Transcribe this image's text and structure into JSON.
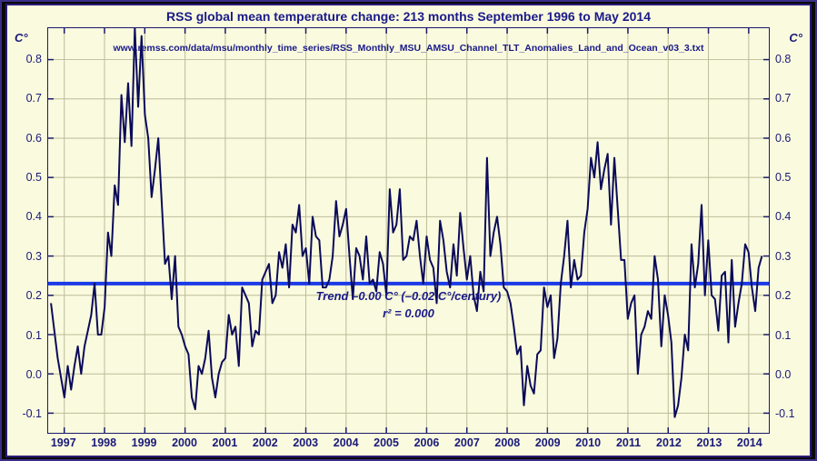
{
  "chart": {
    "type": "line",
    "title": "RSS global mean temperature change: 213 months September 1996 to May 2014",
    "url_text": "www.remss.com/data/msu/monthly_time_series/RSS_Monthly_MSU_AMSU_Channel_TLT_Anomalies_Land_and_Ocean_v03_3.txt",
    "trend_label": "Trend –0.00 C° (–0.02 C°/century)",
    "r2_label": "r² = 0.000",
    "y_axis_label": "C°",
    "title_fontsize": 14,
    "label_fontsize": 13,
    "tick_fontsize": 12.5,
    "background_color": "#fafade",
    "border_color": "#1a1a6a",
    "grid_color": "#bcbc9a",
    "line_color": "#0a0a5a",
    "line_width": 2,
    "trend_line_color": "#1a3ae8",
    "trend_line_width": 4,
    "trend_y": 0.23,
    "text_color": "#1a1a8a",
    "outer_border_color": "#3a2e8a",
    "xlim": [
      1996.6,
      2014.5
    ],
    "ylim": [
      -0.15,
      0.88
    ],
    "yticks": [
      -0.1,
      0.0,
      0.1,
      0.2,
      0.3,
      0.4,
      0.5,
      0.6,
      0.7,
      0.8
    ],
    "ytick_labels": [
      "-0.1",
      "0.0",
      "0.1",
      "0.2",
      "0.3",
      "0.4",
      "0.5",
      "0.6",
      "0.7",
      "0.8"
    ],
    "xticks": [
      1997,
      1998,
      1999,
      2000,
      2001,
      2002,
      2003,
      2004,
      2005,
      2006,
      2007,
      2008,
      2009,
      2010,
      2011,
      2012,
      2013,
      2014
    ],
    "xtick_labels": [
      "1997",
      "1998",
      "1999",
      "2000",
      "2001",
      "2002",
      "2003",
      "2004",
      "2005",
      "2006",
      "2007",
      "2008",
      "2009",
      "2010",
      "2011",
      "2012",
      "2013",
      "2014"
    ],
    "series": {
      "x_start": 1996.67,
      "x_step": 0.0833,
      "y": [
        0.18,
        0.11,
        0.04,
        -0.01,
        -0.06,
        0.02,
        -0.04,
        0.02,
        0.07,
        0.0,
        0.07,
        0.11,
        0.15,
        0.23,
        0.1,
        0.1,
        0.17,
        0.36,
        0.3,
        0.48,
        0.43,
        0.71,
        0.59,
        0.74,
        0.58,
        0.88,
        0.68,
        0.86,
        0.66,
        0.6,
        0.45,
        0.52,
        0.6,
        0.44,
        0.28,
        0.3,
        0.19,
        0.3,
        0.12,
        0.1,
        0.07,
        0.05,
        -0.06,
        -0.09,
        0.02,
        0.0,
        0.04,
        0.11,
        -0.01,
        -0.06,
        0.0,
        0.03,
        0.04,
        0.15,
        0.1,
        0.12,
        0.02,
        0.22,
        0.2,
        0.18,
        0.07,
        0.11,
        0.1,
        0.24,
        0.26,
        0.28,
        0.18,
        0.2,
        0.31,
        0.27,
        0.33,
        0.22,
        0.38,
        0.36,
        0.43,
        0.3,
        0.32,
        0.23,
        0.4,
        0.35,
        0.34,
        0.22,
        0.22,
        0.24,
        0.3,
        0.44,
        0.35,
        0.38,
        0.42,
        0.3,
        0.19,
        0.32,
        0.3,
        0.24,
        0.35,
        0.23,
        0.24,
        0.21,
        0.31,
        0.28,
        0.2,
        0.47,
        0.36,
        0.38,
        0.47,
        0.29,
        0.3,
        0.35,
        0.34,
        0.39,
        0.3,
        0.23,
        0.35,
        0.29,
        0.27,
        0.18,
        0.39,
        0.34,
        0.26,
        0.22,
        0.33,
        0.25,
        0.41,
        0.32,
        0.24,
        0.3,
        0.2,
        0.16,
        0.26,
        0.21,
        0.55,
        0.3,
        0.36,
        0.4,
        0.33,
        0.22,
        0.21,
        0.18,
        0.12,
        0.05,
        0.07,
        -0.08,
        0.02,
        -0.03,
        -0.05,
        0.05,
        0.06,
        0.22,
        0.17,
        0.2,
        0.04,
        0.09,
        0.23,
        0.3,
        0.39,
        0.22,
        0.29,
        0.24,
        0.25,
        0.36,
        0.42,
        0.55,
        0.5,
        0.59,
        0.47,
        0.52,
        0.56,
        0.38,
        0.55,
        0.42,
        0.29,
        0.29,
        0.14,
        0.18,
        0.2,
        0.0,
        0.1,
        0.12,
        0.16,
        0.14,
        0.3,
        0.24,
        0.07,
        0.2,
        0.15,
        0.08,
        -0.11,
        -0.08,
        -0.01,
        0.1,
        0.06,
        0.33,
        0.22,
        0.28,
        0.43,
        0.2,
        0.34,
        0.2,
        0.19,
        0.11,
        0.25,
        0.26,
        0.08,
        0.29,
        0.12,
        0.18,
        0.23,
        0.33,
        0.31,
        0.22,
        0.16,
        0.27,
        0.3
      ]
    }
  }
}
